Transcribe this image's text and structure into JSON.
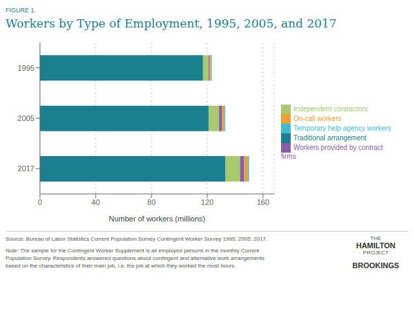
{
  "chart_data": {
    "type": "bar",
    "orientation": "horizontal",
    "stacked": true,
    "grid": true,
    "legend": "right",
    "title": "Workers by Type of Employment, 1995, 2005, and 2017",
    "subtitle": "FIGURE 1.",
    "categories": [
      "2017",
      "2005",
      "1995"
    ],
    "series": [
      {
        "name": "Traditional arrangement",
        "color": "#1a7f8e",
        "values": [
          133.0,
          121.0,
          117.0
        ]
      },
      {
        "name": "Independent contractors",
        "color": "#a8c96e",
        "values": [
          10.5,
          7.5,
          4.0
        ]
      },
      {
        "name": "Workers provided by contract firms",
        "color": "#8b5ca8",
        "values": [
          3.0,
          2.0,
          0.8
        ]
      },
      {
        "name": "On-call workers",
        "color": "#f0a030",
        "values": [
          2.5,
          1.5,
          0.9
        ]
      },
      {
        "name": "Temporary help agency workers",
        "color": "#40bcd0",
        "values": [
          1.0,
          0.8,
          0.6
        ]
      }
    ],
    "xlabel": "Number of workers (millions)",
    "xlim": [
      0,
      168
    ],
    "xticks": [
      0,
      40,
      80,
      120,
      160
    ],
    "annotations": [
      "Source: Bureau of Labor Statistics Current Population Survey Contingent Worker Survey 1995, 2005, 2017.",
      "Note: The sample for the Contingent Worker Supplement is all employed persons in the monthly Current\nPopulation Survey. Respondents answered questions about contingent and alternative work arrangements\nbased on the characteristics of their main job, i.e. the job at which they worked the most hours.",
      "THE",
      "HAMILTON",
      "PROJECT",
      "BROOKINGS"
    ]
  }
}
